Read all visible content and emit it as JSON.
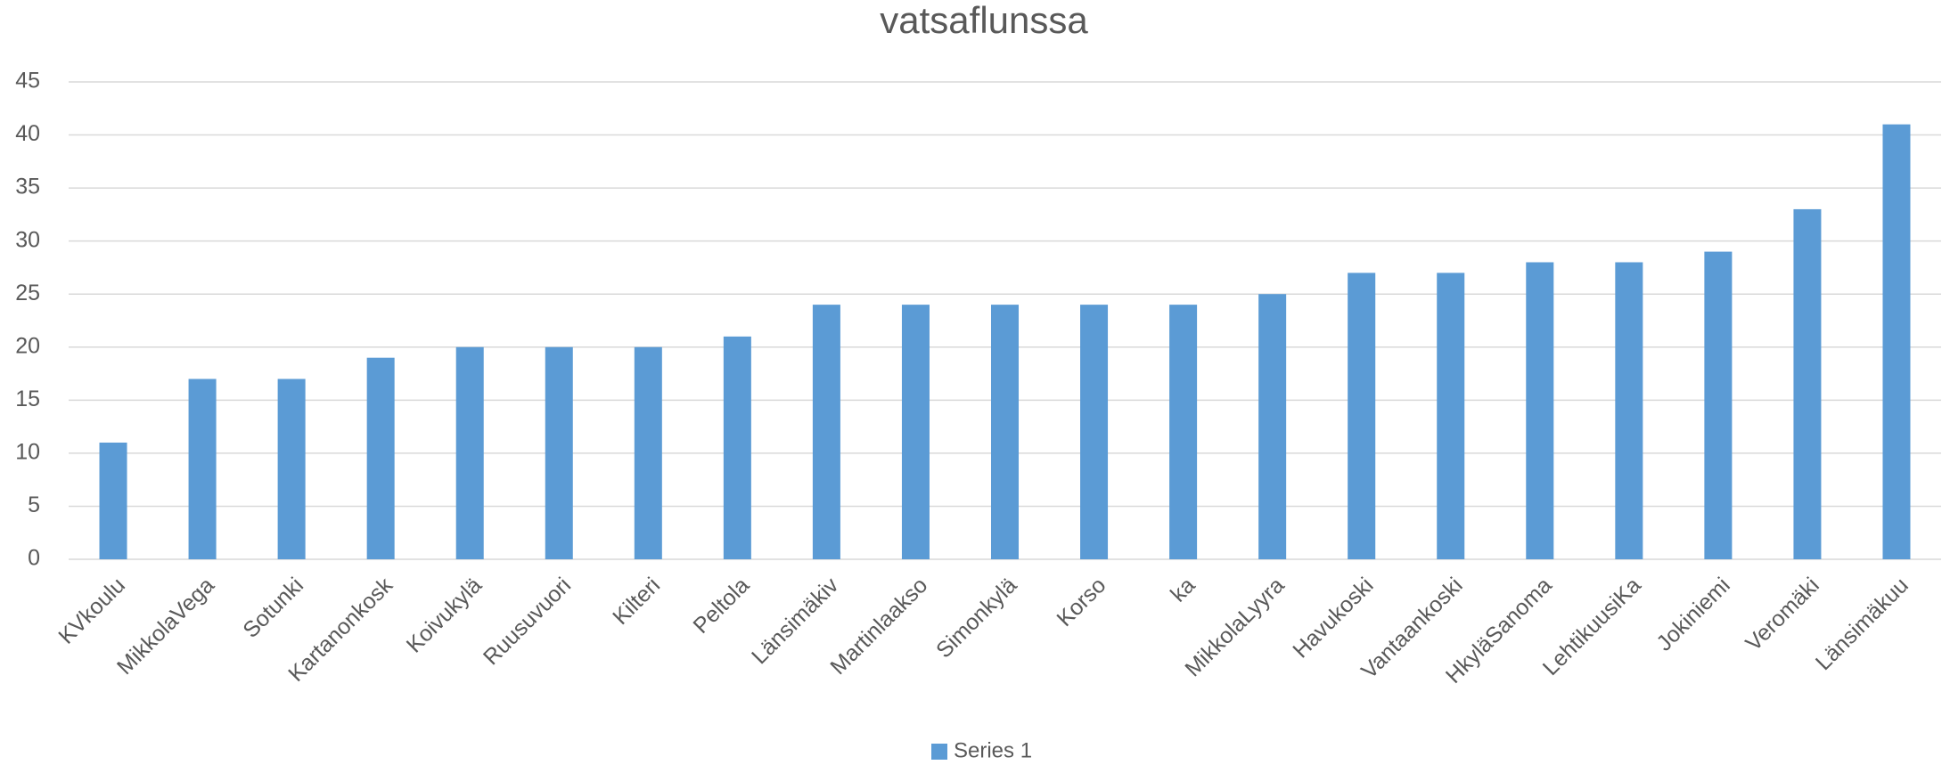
{
  "chart_data": {
    "type": "bar",
    "title": "vatsaflunssa",
    "categories": [
      "KVkoulu",
      "MikkolaVega",
      "Sotunki",
      "Kartanonkosk",
      "Koivukylä",
      "Ruusuvuori",
      "Kilteri",
      "Peltola",
      "Länsimäkiv",
      "Martinlaakso",
      "Simonkylä",
      "Korso",
      "ka",
      "MikkolaLyyra",
      "Havukoski",
      "Vantaankoski",
      "HkyläSanoma",
      "LehtikuusiKa",
      "Jokiniemi",
      "Veromäki",
      "Länsimäkuu"
    ],
    "series": [
      {
        "name": "Series 1",
        "color": "#5b9bd5",
        "values": [
          11,
          17,
          17,
          19,
          20,
          20,
          20,
          21,
          24,
          24,
          24,
          24,
          24,
          25,
          27,
          27,
          28,
          28,
          29,
          33,
          41
        ]
      }
    ],
    "ylim": [
      0,
      45
    ],
    "yticks": [
      0,
      5,
      10,
      15,
      20,
      25,
      30,
      35,
      40,
      45
    ],
    "grid": true,
    "legend": "bottom"
  }
}
